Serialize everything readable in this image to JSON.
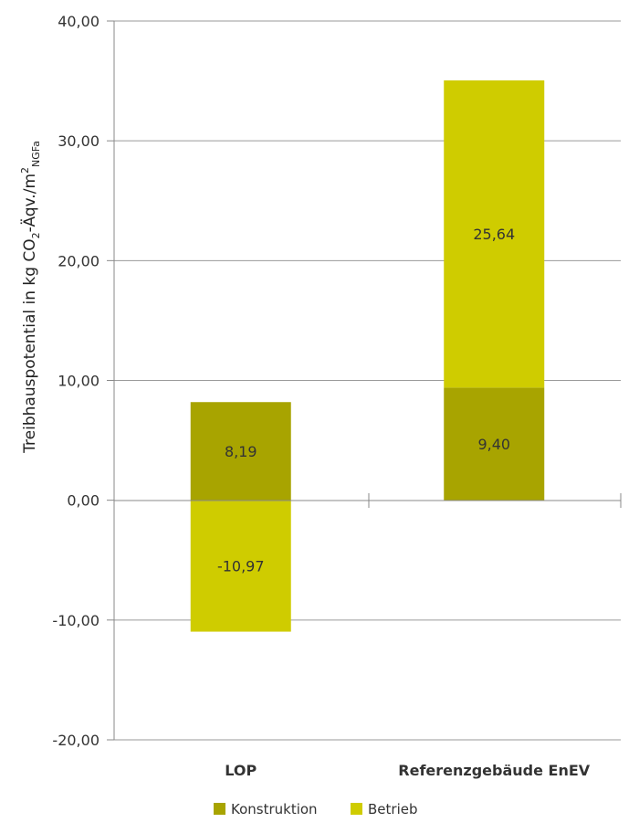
{
  "chart_data": {
    "type": "bar",
    "stacked": true,
    "ylabel": {
      "prefix": "Treibhauspotential in kg CO",
      "sub1": "2",
      "mid": "-Äqv./m",
      "sup": "2",
      "sub2": "NGFa"
    },
    "ylim": [
      -20,
      40
    ],
    "yticks": [
      -20,
      -10,
      0,
      10,
      20,
      30,
      40
    ],
    "ytick_labels": [
      "-20,00",
      "-10,00",
      "0,00",
      "10,00",
      "20,00",
      "30,00",
      "40,00"
    ],
    "grid": true,
    "legend_position": "bottom",
    "categories": [
      "LOP",
      "Referenzgebäude EnEV"
    ],
    "series": [
      {
        "name": "Konstruktion",
        "color": "#a8a400",
        "values": [
          8.19,
          9.4
        ],
        "value_labels": [
          "8,19",
          "9,40"
        ]
      },
      {
        "name": "Betrieb",
        "color": "#cfcc00",
        "values": [
          -10.97,
          25.64
        ],
        "value_labels": [
          "-10,97",
          "25,64"
        ]
      }
    ]
  }
}
